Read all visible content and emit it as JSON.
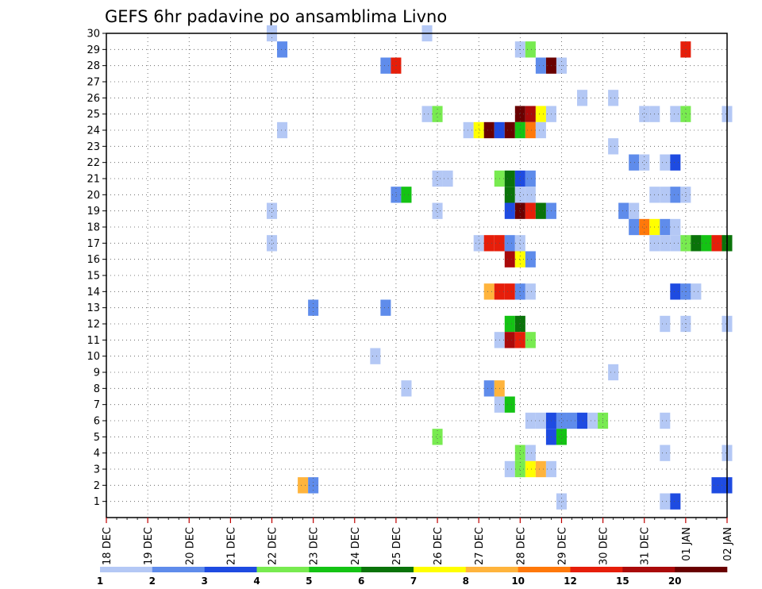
{
  "chart_data": {
    "type": "heatmap",
    "title": "GEFS 6hr padavine po ansamblima Livno",
    "xlabel": "",
    "ylabel": "",
    "x_tick_labels": [
      "18 DEC",
      "19 DEC",
      "20 DEC",
      "21 DEC",
      "22 DEC",
      "23 DEC",
      "24 DEC",
      "25 DEC",
      "26 DEC",
      "27 DEC",
      "28 DEC",
      "29 DEC",
      "30 DEC",
      "31 DEC",
      "01 JAN",
      "02 JAN"
    ],
    "y_tick_labels": [
      "1",
      "2",
      "3",
      "4",
      "5",
      "6",
      "7",
      "8",
      "9",
      "10",
      "11",
      "12",
      "13",
      "14",
      "15",
      "16",
      "17",
      "18",
      "19",
      "20",
      "21",
      "22",
      "23",
      "24",
      "25",
      "26",
      "27",
      "28",
      "29",
      "30"
    ],
    "xlim_steps": [
      0,
      60
    ],
    "ylim": [
      0,
      30
    ],
    "grid": true,
    "legend_placement": "bottom",
    "color_levels": [
      {
        "label": "1",
        "color": "#b4c8f5"
      },
      {
        "label": "2",
        "color": "#5f8ceb"
      },
      {
        "label": "3",
        "color": "#1e4be1"
      },
      {
        "label": "4",
        "color": "#78eb50"
      },
      {
        "label": "5",
        "color": "#14c314"
      },
      {
        "label": "6",
        "color": "#0a730a"
      },
      {
        "label": "7",
        "color": "#ffff00"
      },
      {
        "label": "8",
        "color": "#ffb43c"
      },
      {
        "label": "10",
        "color": "#ff780a"
      },
      {
        "label": "12",
        "color": "#e61e0a"
      },
      {
        "label": "15",
        "color": "#aa0a0a"
      },
      {
        "label": "20",
        "color": "#690000"
      }
    ],
    "cells_note": "each cell = [time_step_index (6h steps from 18 DEC 00z), ensemble_member, color_level_index]",
    "cells": [
      [
        16,
        30,
        0
      ],
      [
        31,
        30,
        0
      ],
      [
        17,
        29,
        1
      ],
      [
        40,
        29,
        0
      ],
      [
        41,
        29,
        3
      ],
      [
        56,
        29,
        9
      ],
      [
        27,
        28,
        1
      ],
      [
        28,
        28,
        9
      ],
      [
        42,
        28,
        1
      ],
      [
        43,
        28,
        11
      ],
      [
        44,
        28,
        0
      ],
      [
        46,
        26,
        0
      ],
      [
        49,
        26,
        0
      ],
      [
        31,
        25,
        0
      ],
      [
        32,
        25,
        3
      ],
      [
        40,
        25,
        11
      ],
      [
        41,
        25,
        10
      ],
      [
        42,
        25,
        6
      ],
      [
        43,
        25,
        0
      ],
      [
        52,
        25,
        0
      ],
      [
        53,
        25,
        0
      ],
      [
        55,
        25,
        0
      ],
      [
        56,
        25,
        3
      ],
      [
        60,
        25,
        0
      ],
      [
        17,
        24,
        0
      ],
      [
        35,
        24,
        0
      ],
      [
        36,
        24,
        6
      ],
      [
        37,
        24,
        11
      ],
      [
        38,
        24,
        2
      ],
      [
        39,
        24,
        11
      ],
      [
        40,
        24,
        4
      ],
      [
        41,
        24,
        8
      ],
      [
        42,
        24,
        0
      ],
      [
        49,
        23,
        0
      ],
      [
        51,
        22,
        1
      ],
      [
        52,
        22,
        0
      ],
      [
        54,
        22,
        0
      ],
      [
        55,
        22,
        2
      ],
      [
        32,
        21,
        0
      ],
      [
        33,
        21,
        0
      ],
      [
        38,
        21,
        3
      ],
      [
        39,
        21,
        5
      ],
      [
        40,
        21,
        2
      ],
      [
        41,
        21,
        1
      ],
      [
        28,
        20,
        1
      ],
      [
        29,
        20,
        4
      ],
      [
        39,
        20,
        5
      ],
      [
        40,
        20,
        0
      ],
      [
        41,
        20,
        0
      ],
      [
        53,
        20,
        0
      ],
      [
        54,
        20,
        0
      ],
      [
        55,
        20,
        1
      ],
      [
        56,
        20,
        0
      ],
      [
        16,
        19,
        0
      ],
      [
        32,
        19,
        0
      ],
      [
        39,
        19,
        2
      ],
      [
        40,
        19,
        11
      ],
      [
        41,
        19,
        9
      ],
      [
        42,
        19,
        5
      ],
      [
        43,
        19,
        1
      ],
      [
        50,
        19,
        1
      ],
      [
        51,
        19,
        0
      ],
      [
        51,
        18,
        1
      ],
      [
        52,
        18,
        8
      ],
      [
        53,
        18,
        6
      ],
      [
        54,
        18,
        1
      ],
      [
        55,
        18,
        0
      ],
      [
        16,
        17,
        0
      ],
      [
        36,
        17,
        0
      ],
      [
        37,
        17,
        9
      ],
      [
        38,
        17,
        9
      ],
      [
        39,
        17,
        1
      ],
      [
        40,
        17,
        0
      ],
      [
        53,
        17,
        0
      ],
      [
        54,
        17,
        0
      ],
      [
        55,
        17,
        0
      ],
      [
        56,
        17,
        3
      ],
      [
        57,
        17,
        5
      ],
      [
        58,
        17,
        4
      ],
      [
        59,
        17,
        9
      ],
      [
        60,
        17,
        5
      ],
      [
        39,
        16,
        10
      ],
      [
        40,
        16,
        6
      ],
      [
        41,
        16,
        1
      ],
      [
        37,
        14,
        7
      ],
      [
        38,
        14,
        9
      ],
      [
        39,
        14,
        9
      ],
      [
        40,
        14,
        1
      ],
      [
        41,
        14,
        0
      ],
      [
        55,
        14,
        2
      ],
      [
        56,
        14,
        1
      ],
      [
        57,
        14,
        0
      ],
      [
        20,
        13,
        1
      ],
      [
        27,
        13,
        1
      ],
      [
        39,
        12,
        4
      ],
      [
        40,
        12,
        5
      ],
      [
        54,
        12,
        0
      ],
      [
        56,
        12,
        0
      ],
      [
        60,
        12,
        0
      ],
      [
        38,
        11,
        0
      ],
      [
        39,
        11,
        10
      ],
      [
        40,
        11,
        9
      ],
      [
        41,
        11,
        3
      ],
      [
        26,
        10,
        0
      ],
      [
        49,
        9,
        0
      ],
      [
        29,
        8,
        0
      ],
      [
        37,
        8,
        1
      ],
      [
        38,
        8,
        7
      ],
      [
        38,
        7,
        0
      ],
      [
        39,
        7,
        4
      ],
      [
        41,
        6,
        0
      ],
      [
        42,
        6,
        0
      ],
      [
        43,
        6,
        2
      ],
      [
        44,
        6,
        1
      ],
      [
        45,
        6,
        1
      ],
      [
        46,
        6,
        2
      ],
      [
        47,
        6,
        0
      ],
      [
        48,
        6,
        3
      ],
      [
        54,
        6,
        0
      ],
      [
        32,
        5,
        3
      ],
      [
        43,
        5,
        2
      ],
      [
        44,
        5,
        4
      ],
      [
        40,
        4,
        3
      ],
      [
        41,
        4,
        0
      ],
      [
        54,
        4,
        0
      ],
      [
        60,
        4,
        0
      ],
      [
        39,
        3,
        0
      ],
      [
        40,
        3,
        3
      ],
      [
        41,
        3,
        6
      ],
      [
        42,
        3,
        7
      ],
      [
        43,
        3,
        0
      ],
      [
        19,
        2,
        7
      ],
      [
        20,
        2,
        1
      ],
      [
        59,
        2,
        2
      ],
      [
        60,
        2,
        2
      ],
      [
        44,
        1,
        0
      ],
      [
        54,
        1,
        0
      ],
      [
        55,
        1,
        2
      ]
    ]
  }
}
